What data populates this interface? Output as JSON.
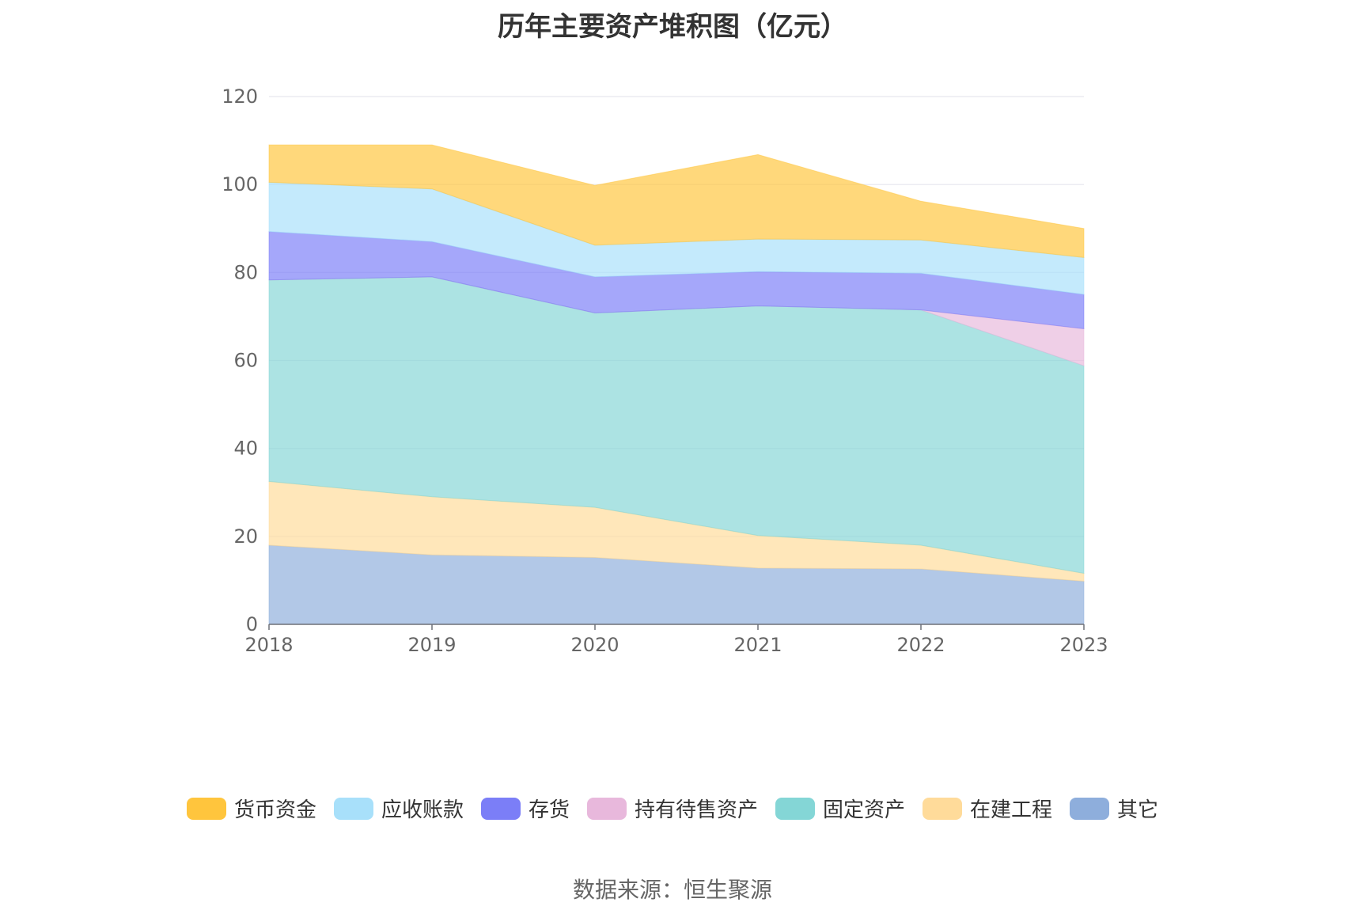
{
  "title": "历年主要资产堆积图（亿元）",
  "source": "数据来源：恒生聚源",
  "chart_data": {
    "type": "area",
    "stacked": true,
    "title": "历年主要资产堆积图（亿元）",
    "x": [
      "2018",
      "2019",
      "2020",
      "2021",
      "2022",
      "2023"
    ],
    "ylim": [
      0,
      120
    ],
    "yticks": [
      0,
      20,
      40,
      60,
      80,
      100,
      120
    ],
    "grid": true,
    "legend_position": "bottom",
    "series": [
      {
        "name": "其它",
        "color": "#8eaedc",
        "values": [
          18.0,
          15.8,
          15.2,
          12.8,
          12.6,
          9.8
        ]
      },
      {
        "name": "在建工程",
        "color": "#ffdb9a",
        "values": [
          14.5,
          13.2,
          11.4,
          7.4,
          5.4,
          1.8
        ]
      },
      {
        "name": "固定资产",
        "color": "#84d6d6",
        "values": [
          45.8,
          50.0,
          44.2,
          52.2,
          53.5,
          47.2
        ]
      },
      {
        "name": "持有待售资产",
        "color": "#e8b8dc",
        "values": [
          0,
          0,
          0,
          0,
          0,
          8.4
        ]
      },
      {
        "name": "存货",
        "color": "#7b7ef7",
        "values": [
          11.0,
          8.0,
          8.2,
          7.8,
          8.3,
          7.8
        ]
      },
      {
        "name": "应收账款",
        "color": "#a8e0fa",
        "values": [
          11.2,
          12.0,
          7.2,
          7.4,
          7.6,
          8.4
        ]
      },
      {
        "name": "货币资金",
        "color": "#ffc53d",
        "values": [
          8.5,
          10.0,
          13.6,
          19.2,
          8.8,
          6.6
        ]
      }
    ]
  },
  "legend_order": [
    "货币资金",
    "应收账款",
    "存货",
    "持有待售资产",
    "固定资产",
    "在建工程",
    "其它"
  ]
}
